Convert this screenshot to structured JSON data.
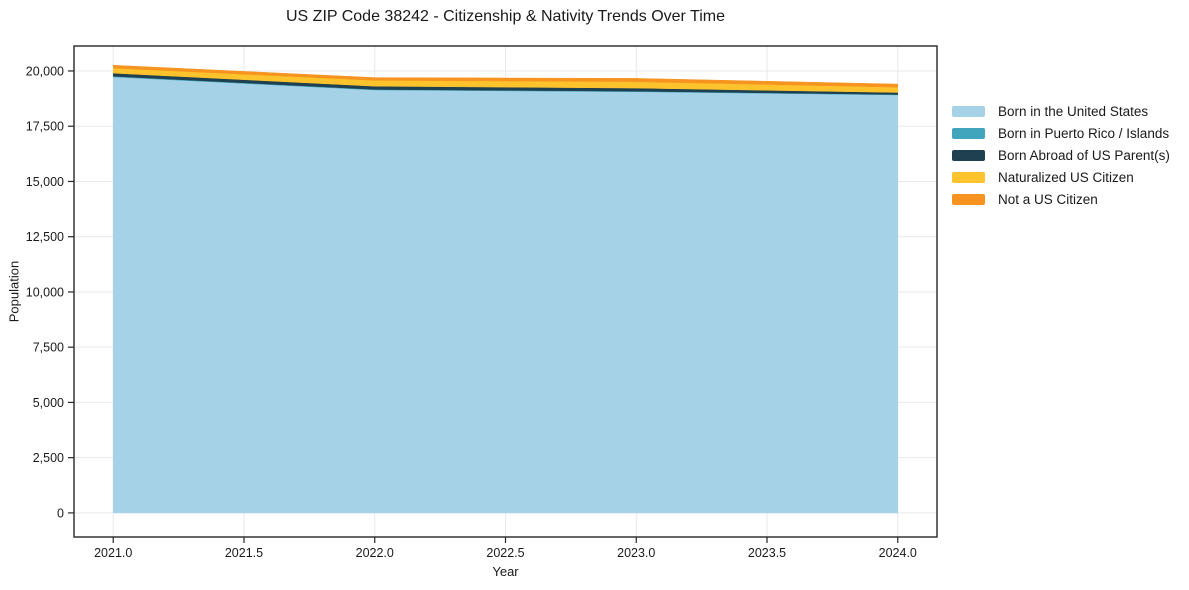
{
  "figure": {
    "background": "#ffffff"
  },
  "chart_data": {
    "type": "area",
    "stacked": true,
    "title": "US ZIP Code 38242 - Citizenship & Nativity Trends Over Time",
    "xlabel": "Year",
    "ylabel": "Population",
    "x": [
      2021,
      2022,
      2023,
      2024
    ],
    "series": [
      {
        "name": "Born in the United States",
        "color": "#a6d2e7",
        "values": [
          19730,
          19140,
          19060,
          18915
        ]
      },
      {
        "name": "Born in Puerto Rico / Islands",
        "color": "#41a6bd",
        "values": [
          30,
          25,
          25,
          20
        ]
      },
      {
        "name": "Born Abroad of US Parent(s)",
        "color": "#1f4050",
        "values": [
          140,
          145,
          140,
          90
        ]
      },
      {
        "name": "Naturalized US Citizen",
        "color": "#fcc32d",
        "values": [
          230,
          265,
          290,
          240
        ]
      },
      {
        "name": "Not a US Citizen",
        "color": "#f79420",
        "values": [
          130,
          125,
          150,
          140
        ]
      }
    ],
    "x_ticks": [
      2021.0,
      2021.5,
      2022.0,
      2022.5,
      2023.0,
      2023.5,
      2024.0
    ],
    "x_tick_labels": [
      "2021.0",
      "2021.5",
      "2022.0",
      "2022.5",
      "2023.0",
      "2023.5",
      "2024.0"
    ],
    "y_ticks": [
      0,
      2500,
      5000,
      7500,
      10000,
      12500,
      15000,
      17500,
      20000
    ],
    "y_tick_labels": [
      "0",
      "2,500",
      "5,000",
      "7,500",
      "10,000",
      "12,500",
      "15,000",
      "17,500",
      "20,000"
    ],
    "xlim": [
      2020.85,
      2024.15
    ],
    "ylim": [
      -1090,
      21130
    ],
    "grid": true,
    "grid_color": "#e9e9e9",
    "axis_color": "#262626",
    "text_color": "#1a1a1a",
    "legend_position": "right",
    "legend_frame": false
  }
}
